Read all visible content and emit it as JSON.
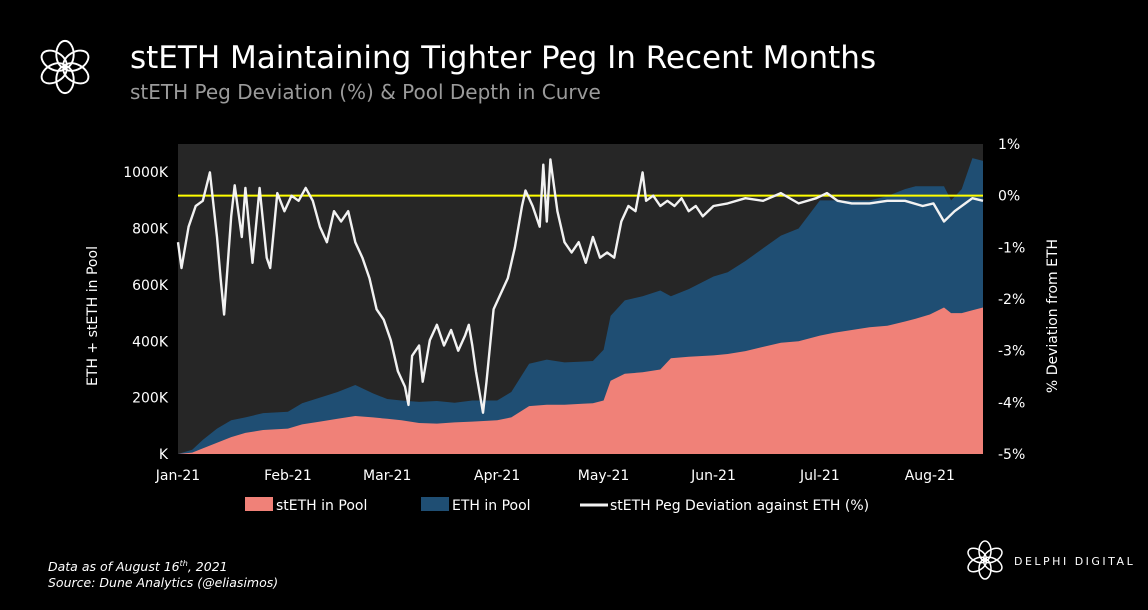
{
  "header": {
    "title": "stETH Maintaining Tighter Peg In Recent Months",
    "subtitle": "stETH Peg Deviation (%) & Pool Depth in Curve"
  },
  "footer": {
    "data_as_of_prefix": "Data as of August 16",
    "data_as_of_sup": "th",
    "data_as_of_suffix": ", 2021",
    "source": "Source:  Dune Analytics (@eliasimos)"
  },
  "brand": {
    "name": "DELPHI DIGITAL",
    "logo_icon": "flower-logo-icon"
  },
  "colors": {
    "background": "#000000",
    "plot_area": "#262626",
    "steth_area": "#f08178",
    "eth_area": "#1f4e73",
    "deviation_line": "#f2f2f2",
    "zero_line": "#ffff00",
    "subtitle": "#9a9a9a"
  },
  "chart_data": {
    "type": "area",
    "x_tick_labels": [
      "Jan-21",
      "Feb-21",
      "Mar-21",
      "Apr-21",
      "May-21",
      "Jun-21",
      "Jul-21",
      "Aug-21"
    ],
    "x_range": [
      "2021-01-01",
      "2021-08-16"
    ],
    "ylabel_left": "ETH + stETH in Pool",
    "ylabel_right": "% Deviation from ETH",
    "ylim_left": [
      0,
      1100000
    ],
    "y_tick_labels_left": [
      "K",
      "200K",
      "400K",
      "600K",
      "800K",
      "1000K"
    ],
    "y_tick_values_left": [
      0,
      200000,
      400000,
      600000,
      800000,
      1000000
    ],
    "ylim_right": [
      -5,
      1
    ],
    "y_tick_labels_right": [
      "-5%",
      "-4%",
      "-3%",
      "-2%",
      "-1%",
      "0%",
      "1%"
    ],
    "y_tick_values_right": [
      -5,
      -4,
      -3,
      -2,
      -1,
      0,
      1
    ],
    "grid": false,
    "legend_position": "bottom",
    "legend": [
      "stETH in Pool",
      "ETH in Pool",
      "stETH Peg Deviation against ETH (%)"
    ],
    "reference_line_right": 0,
    "series": [
      {
        "name": "stETH in Pool",
        "kind": "area",
        "axis": "left",
        "points": [
          [
            "2021-01-01",
            0
          ],
          [
            "2021-01-05",
            5000
          ],
          [
            "2021-01-08",
            20000
          ],
          [
            "2021-01-12",
            40000
          ],
          [
            "2021-01-16",
            60000
          ],
          [
            "2021-01-20",
            75000
          ],
          [
            "2021-01-25",
            85000
          ],
          [
            "2021-02-01",
            90000
          ],
          [
            "2021-02-05",
            105000
          ],
          [
            "2021-02-10",
            115000
          ],
          [
            "2021-02-15",
            125000
          ],
          [
            "2021-02-20",
            135000
          ],
          [
            "2021-02-25",
            130000
          ],
          [
            "2021-03-01",
            125000
          ],
          [
            "2021-03-05",
            120000
          ],
          [
            "2021-03-10",
            110000
          ],
          [
            "2021-03-15",
            108000
          ],
          [
            "2021-03-20",
            112000
          ],
          [
            "2021-03-25",
            115000
          ],
          [
            "2021-04-01",
            120000
          ],
          [
            "2021-04-05",
            130000
          ],
          [
            "2021-04-10",
            170000
          ],
          [
            "2021-04-15",
            175000
          ],
          [
            "2021-04-20",
            175000
          ],
          [
            "2021-04-25",
            178000
          ],
          [
            "2021-04-28",
            180000
          ],
          [
            "2021-05-01",
            190000
          ],
          [
            "2021-05-03",
            260000
          ],
          [
            "2021-05-07",
            285000
          ],
          [
            "2021-05-12",
            290000
          ],
          [
            "2021-05-17",
            300000
          ],
          [
            "2021-05-20",
            340000
          ],
          [
            "2021-05-25",
            345000
          ],
          [
            "2021-06-01",
            350000
          ],
          [
            "2021-06-05",
            355000
          ],
          [
            "2021-06-10",
            365000
          ],
          [
            "2021-06-15",
            380000
          ],
          [
            "2021-06-20",
            395000
          ],
          [
            "2021-06-25",
            400000
          ],
          [
            "2021-07-01",
            420000
          ],
          [
            "2021-07-05",
            430000
          ],
          [
            "2021-07-10",
            440000
          ],
          [
            "2021-07-15",
            450000
          ],
          [
            "2021-07-20",
            455000
          ],
          [
            "2021-07-25",
            470000
          ],
          [
            "2021-07-28",
            480000
          ],
          [
            "2021-08-01",
            495000
          ],
          [
            "2021-08-05",
            520000
          ],
          [
            "2021-08-07",
            500000
          ],
          [
            "2021-08-10",
            500000
          ],
          [
            "2021-08-13",
            510000
          ],
          [
            "2021-08-16",
            520000
          ]
        ]
      },
      {
        "name": "ETH in Pool",
        "kind": "area",
        "axis": "left",
        "stacked_on": "stETH in Pool",
        "points": [
          [
            "2021-01-01",
            0
          ],
          [
            "2021-01-05",
            10000
          ],
          [
            "2021-01-08",
            30000
          ],
          [
            "2021-01-12",
            50000
          ],
          [
            "2021-01-16",
            60000
          ],
          [
            "2021-01-20",
            55000
          ],
          [
            "2021-01-25",
            60000
          ],
          [
            "2021-02-01",
            60000
          ],
          [
            "2021-02-05",
            75000
          ],
          [
            "2021-02-10",
            85000
          ],
          [
            "2021-02-15",
            95000
          ],
          [
            "2021-02-20",
            110000
          ],
          [
            "2021-02-25",
            85000
          ],
          [
            "2021-03-01",
            70000
          ],
          [
            "2021-03-05",
            70000
          ],
          [
            "2021-03-10",
            75000
          ],
          [
            "2021-03-15",
            80000
          ],
          [
            "2021-03-20",
            70000
          ],
          [
            "2021-03-25",
            75000
          ],
          [
            "2021-04-01",
            70000
          ],
          [
            "2021-04-05",
            90000
          ],
          [
            "2021-04-10",
            150000
          ],
          [
            "2021-04-15",
            160000
          ],
          [
            "2021-04-20",
            150000
          ],
          [
            "2021-04-25",
            150000
          ],
          [
            "2021-04-28",
            150000
          ],
          [
            "2021-05-01",
            180000
          ],
          [
            "2021-05-03",
            230000
          ],
          [
            "2021-05-07",
            260000
          ],
          [
            "2021-05-12",
            270000
          ],
          [
            "2021-05-17",
            280000
          ],
          [
            "2021-05-20",
            220000
          ],
          [
            "2021-05-25",
            240000
          ],
          [
            "2021-06-01",
            280000
          ],
          [
            "2021-06-05",
            290000
          ],
          [
            "2021-06-10",
            320000
          ],
          [
            "2021-06-15",
            350000
          ],
          [
            "2021-06-20",
            380000
          ],
          [
            "2021-06-25",
            400000
          ],
          [
            "2021-07-01",
            480000
          ],
          [
            "2021-07-05",
            470000
          ],
          [
            "2021-07-10",
            460000
          ],
          [
            "2021-07-15",
            450000
          ],
          [
            "2021-07-20",
            460000
          ],
          [
            "2021-07-25",
            470000
          ],
          [
            "2021-07-28",
            470000
          ],
          [
            "2021-08-01",
            455000
          ],
          [
            "2021-08-05",
            430000
          ],
          [
            "2021-08-07",
            400000
          ],
          [
            "2021-08-10",
            440000
          ],
          [
            "2021-08-13",
            540000
          ],
          [
            "2021-08-16",
            520000
          ]
        ]
      },
      {
        "name": "stETH Peg Deviation against ETH (%)",
        "kind": "line",
        "axis": "right",
        "points": [
          [
            "2021-01-01",
            -0.9
          ],
          [
            "2021-01-02",
            -1.4
          ],
          [
            "2021-01-04",
            -0.6
          ],
          [
            "2021-01-06",
            -0.2
          ],
          [
            "2021-01-08",
            -0.1
          ],
          [
            "2021-01-10",
            0.45
          ],
          [
            "2021-01-12",
            -0.8
          ],
          [
            "2021-01-13",
            -1.6
          ],
          [
            "2021-01-14",
            -2.3
          ],
          [
            "2021-01-16",
            -0.4
          ],
          [
            "2021-01-17",
            0.2
          ],
          [
            "2021-01-19",
            -0.8
          ],
          [
            "2021-01-20",
            0.15
          ],
          [
            "2021-01-22",
            -1.3
          ],
          [
            "2021-01-24",
            0.15
          ],
          [
            "2021-01-26",
            -1.2
          ],
          [
            "2021-01-27",
            -1.4
          ],
          [
            "2021-01-29",
            0.05
          ],
          [
            "2021-01-31",
            -0.3
          ],
          [
            "2021-02-02",
            0.0
          ],
          [
            "2021-02-04",
            -0.1
          ],
          [
            "2021-02-06",
            0.15
          ],
          [
            "2021-02-08",
            -0.1
          ],
          [
            "2021-02-10",
            -0.6
          ],
          [
            "2021-02-12",
            -0.9
          ],
          [
            "2021-02-14",
            -0.3
          ],
          [
            "2021-02-16",
            -0.5
          ],
          [
            "2021-02-18",
            -0.3
          ],
          [
            "2021-02-20",
            -0.9
          ],
          [
            "2021-02-22",
            -1.2
          ],
          [
            "2021-02-24",
            -1.6
          ],
          [
            "2021-02-26",
            -2.2
          ],
          [
            "2021-02-28",
            -2.4
          ],
          [
            "2021-03-02",
            -2.8
          ],
          [
            "2021-03-04",
            -3.4
          ],
          [
            "2021-03-06",
            -3.7
          ],
          [
            "2021-03-07",
            -4.05
          ],
          [
            "2021-03-08",
            -3.1
          ],
          [
            "2021-03-10",
            -2.9
          ],
          [
            "2021-03-11",
            -3.6
          ],
          [
            "2021-03-13",
            -2.8
          ],
          [
            "2021-03-15",
            -2.5
          ],
          [
            "2021-03-17",
            -2.9
          ],
          [
            "2021-03-19",
            -2.6
          ],
          [
            "2021-03-21",
            -3.0
          ],
          [
            "2021-03-23",
            -2.7
          ],
          [
            "2021-03-24",
            -2.5
          ],
          [
            "2021-03-25",
            -2.9
          ],
          [
            "2021-03-26",
            -3.4
          ],
          [
            "2021-03-28",
            -4.2
          ],
          [
            "2021-03-29",
            -3.6
          ],
          [
            "2021-03-31",
            -2.2
          ],
          [
            "2021-04-02",
            -1.9
          ],
          [
            "2021-04-04",
            -1.6
          ],
          [
            "2021-04-06",
            -1.0
          ],
          [
            "2021-04-08",
            -0.2
          ],
          [
            "2021-04-09",
            0.1
          ],
          [
            "2021-04-11",
            -0.2
          ],
          [
            "2021-04-13",
            -0.6
          ],
          [
            "2021-04-14",
            0.6
          ],
          [
            "2021-04-15",
            -0.5
          ],
          [
            "2021-04-16",
            0.7
          ],
          [
            "2021-04-18",
            -0.3
          ],
          [
            "2021-04-20",
            -0.9
          ],
          [
            "2021-04-22",
            -1.1
          ],
          [
            "2021-04-24",
            -0.9
          ],
          [
            "2021-04-26",
            -1.3
          ],
          [
            "2021-04-28",
            -0.8
          ],
          [
            "2021-04-30",
            -1.2
          ],
          [
            "2021-05-02",
            -1.1
          ],
          [
            "2021-05-04",
            -1.2
          ],
          [
            "2021-05-06",
            -0.5
          ],
          [
            "2021-05-08",
            -0.2
          ],
          [
            "2021-05-10",
            -0.3
          ],
          [
            "2021-05-12",
            0.45
          ],
          [
            "2021-05-13",
            -0.1
          ],
          [
            "2021-05-15",
            0.0
          ],
          [
            "2021-05-17",
            -0.2
          ],
          [
            "2021-05-19",
            -0.1
          ],
          [
            "2021-05-21",
            -0.2
          ],
          [
            "2021-05-23",
            -0.05
          ],
          [
            "2021-05-25",
            -0.3
          ],
          [
            "2021-05-27",
            -0.2
          ],
          [
            "2021-05-29",
            -0.4
          ],
          [
            "2021-06-01",
            -0.2
          ],
          [
            "2021-06-05",
            -0.15
          ],
          [
            "2021-06-10",
            -0.05
          ],
          [
            "2021-06-15",
            -0.1
          ],
          [
            "2021-06-20",
            0.05
          ],
          [
            "2021-06-25",
            -0.15
          ],
          [
            "2021-06-30",
            -0.05
          ],
          [
            "2021-07-03",
            0.05
          ],
          [
            "2021-07-06",
            -0.1
          ],
          [
            "2021-07-10",
            -0.15
          ],
          [
            "2021-07-15",
            -0.15
          ],
          [
            "2021-07-20",
            -0.1
          ],
          [
            "2021-07-25",
            -0.1
          ],
          [
            "2021-07-30",
            -0.2
          ],
          [
            "2021-08-02",
            -0.15
          ],
          [
            "2021-08-05",
            -0.5
          ],
          [
            "2021-08-08",
            -0.3
          ],
          [
            "2021-08-11",
            -0.15
          ],
          [
            "2021-08-13",
            -0.05
          ],
          [
            "2021-08-16",
            -0.1
          ]
        ]
      }
    ]
  }
}
